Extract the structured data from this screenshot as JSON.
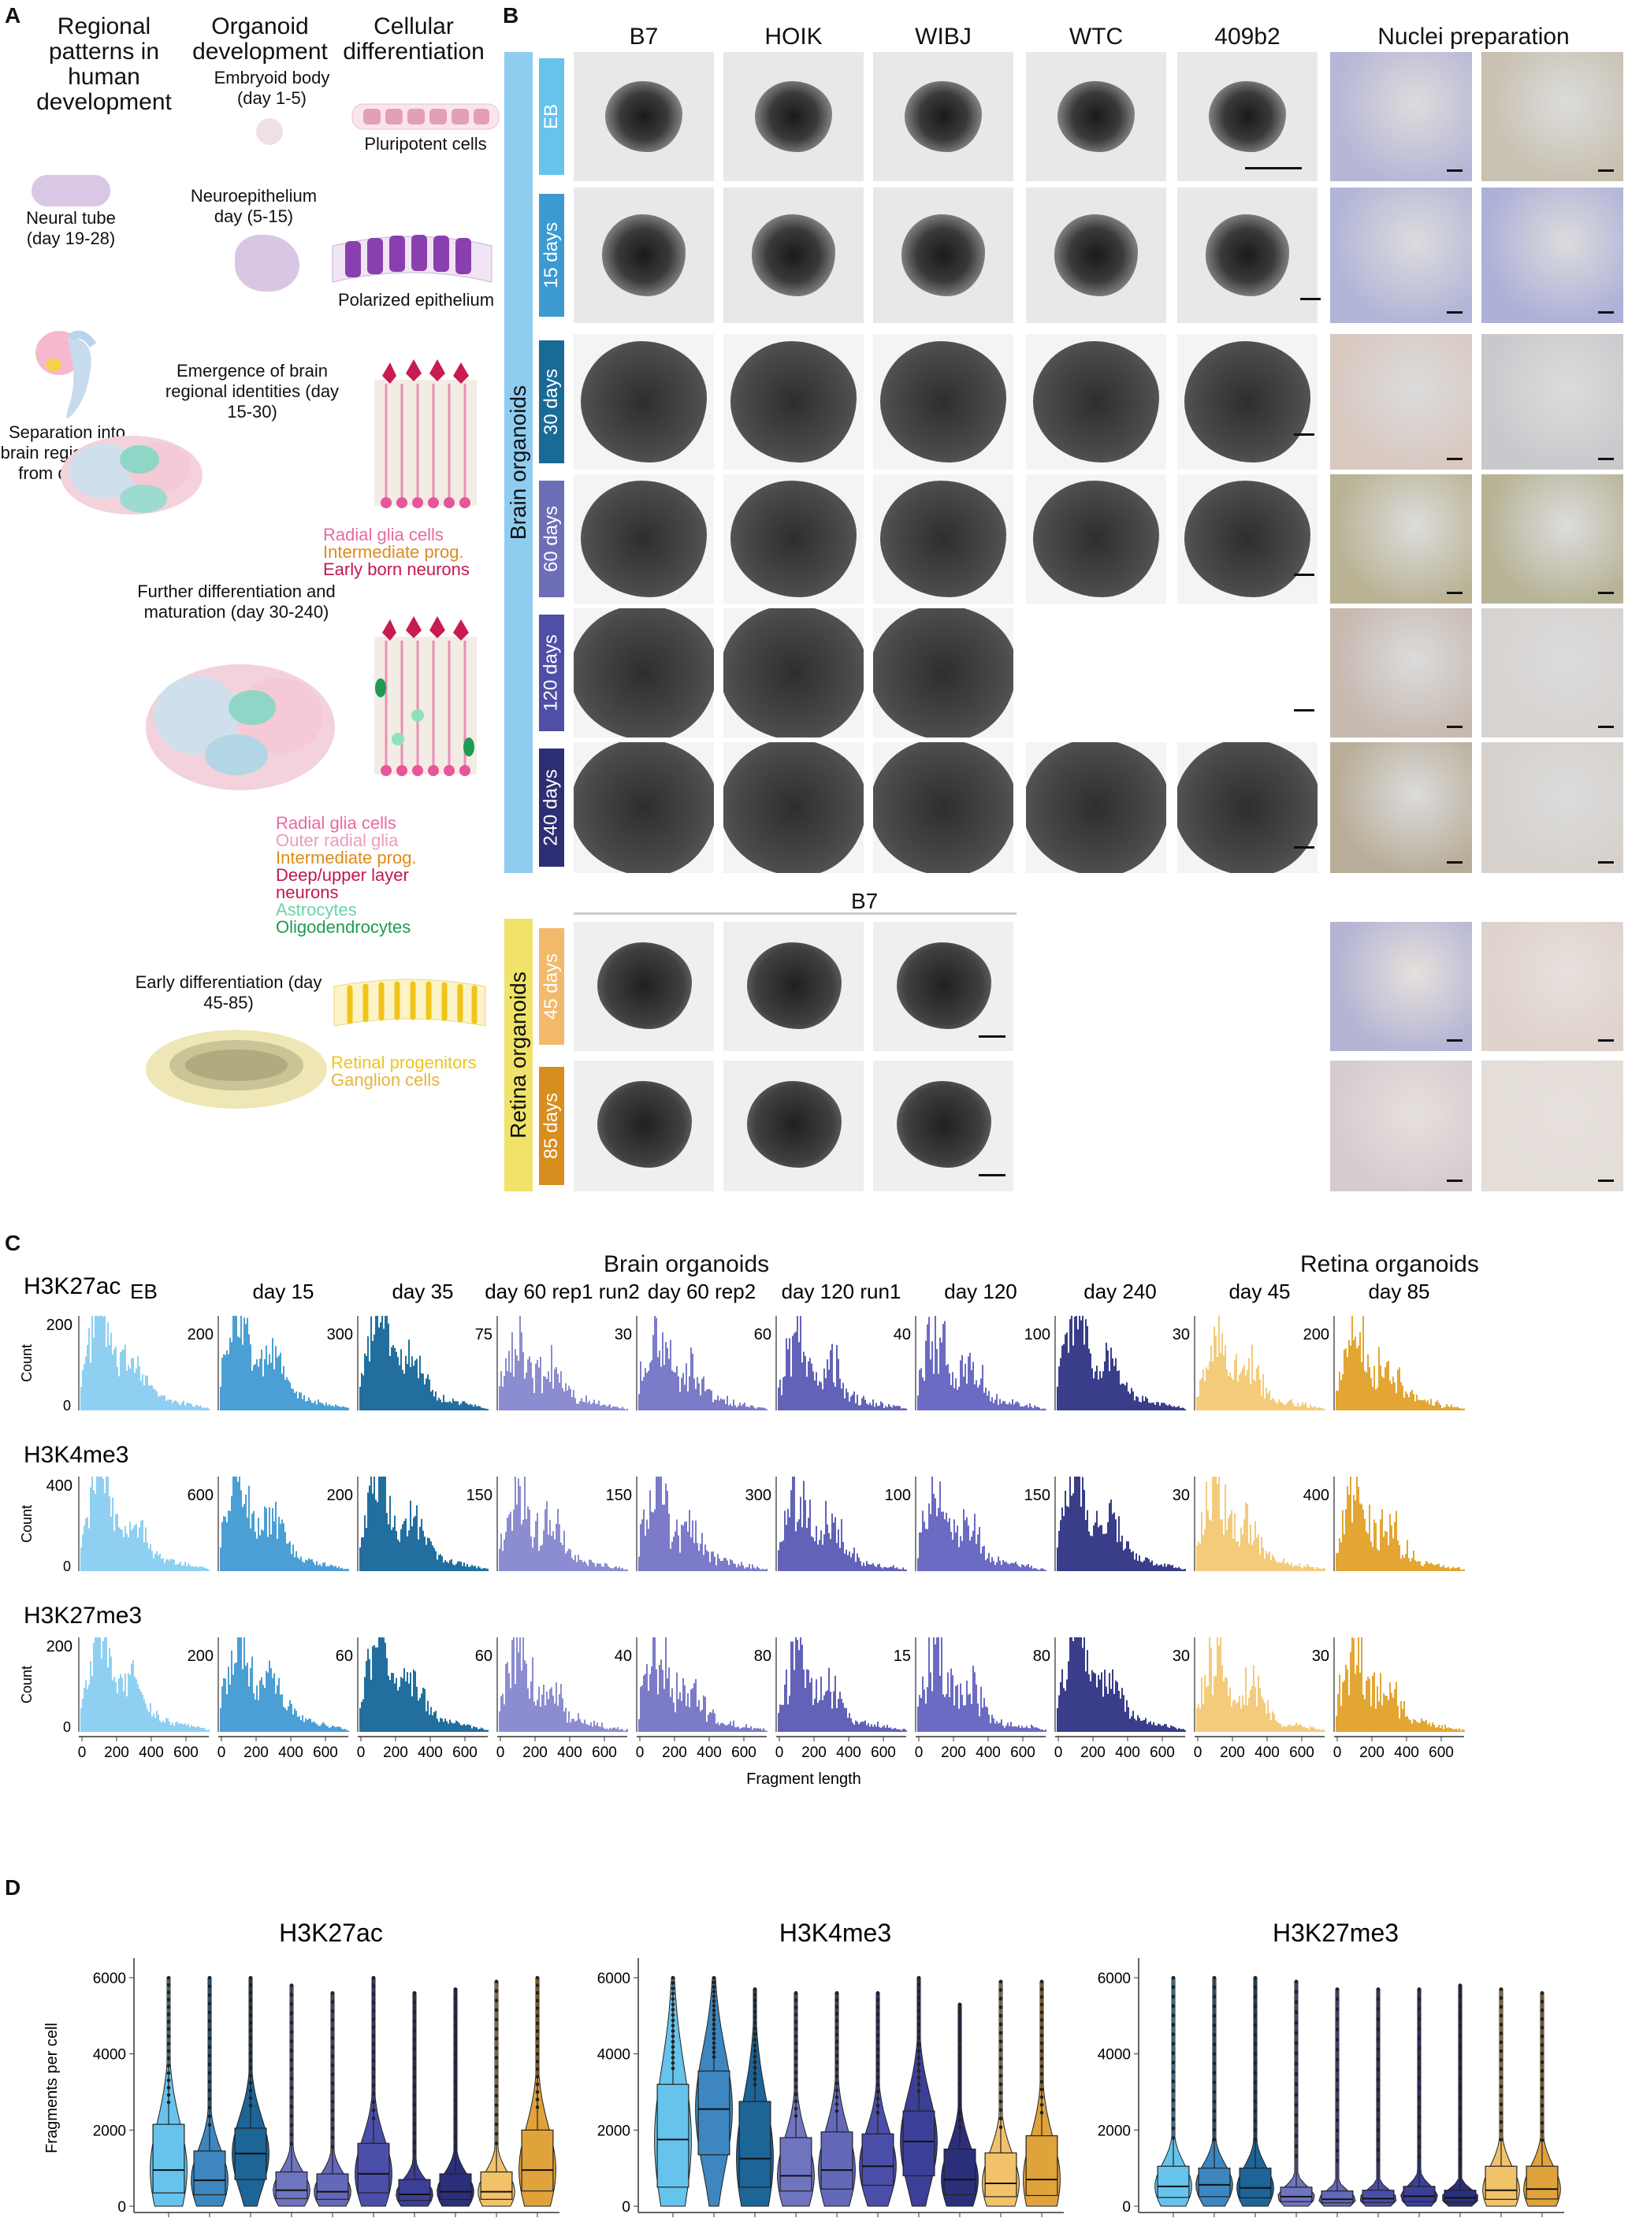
{
  "panelA": {
    "letter": "A",
    "col_headers": [
      "Regional patterns in human development",
      "Organoid development",
      "Cellular differentiation"
    ],
    "left_labels": {
      "neural_tube": "Neural tube (day 19-28)",
      "separation": "Separation into brain regions day from day 25)"
    },
    "stages": {
      "eb": "Embryoid body (day 1-5)",
      "pluripotent": "Pluripotent cells",
      "neuroepi": "Neuroepithelium day (5-15)",
      "polarized": "Polarized epithelium",
      "emergence": "Emergence of brain regional identities (day 15-30)",
      "further": "Further differentiation and maturation (day 30-240)",
      "early": "Early differentiation (day 45-85)"
    },
    "celltypes1": [
      {
        "text": "Radial glia cells",
        "color": "#e86aa0"
      },
      {
        "text": "Intermediate prog.",
        "color": "#e08a1c"
      },
      {
        "text": "Early born neurons",
        "color": "#c3184d"
      }
    ],
    "celltypes2": [
      {
        "text": "Radial glia cells",
        "color": "#e86aa0"
      },
      {
        "text": "Outer radial glia",
        "color": "#f09ac0"
      },
      {
        "text": "Intermediate prog.",
        "color": "#e08a1c"
      },
      {
        "text": "Deep/upper layer",
        "color": "#c3184d"
      },
      {
        "text": "neurons",
        "color": "#c3184d"
      },
      {
        "text": "Astrocytes",
        "color": "#6fd2a5"
      },
      {
        "text": "Oligodendrocytes",
        "color": "#1f9a55"
      }
    ],
    "celltypes3": [
      {
        "text": "Retinal progenitors",
        "color": "#f0c419"
      },
      {
        "text": "Ganglion cells",
        "color": "#e6b43c"
      }
    ]
  },
  "panelB": {
    "letter": "B",
    "lines": [
      "B7",
      "HOIK",
      "WIBJ",
      "WTC",
      "409b2"
    ],
    "nuclei_header": "Nuclei preparation",
    "brain_label": "Brain organoids",
    "retina_label": "Retina organoids",
    "retina_line": "B7",
    "brain_rows": [
      {
        "label": "EB",
        "color": "#66c3ec",
        "present": [
          1,
          1,
          1,
          1,
          1
        ]
      },
      {
        "label": "15 days",
        "color": "#3d9ad1",
        "present": [
          1,
          1,
          1,
          1,
          1
        ]
      },
      {
        "label": "30 days",
        "color": "#1a6a97",
        "present": [
          1,
          1,
          1,
          1,
          1
        ]
      },
      {
        "label": "60 days",
        "color": "#6d6eb8",
        "present": [
          1,
          1,
          1,
          1,
          1
        ]
      },
      {
        "label": "120 days",
        "color": "#4f4fa6",
        "present": [
          1,
          1,
          1,
          0,
          0
        ]
      },
      {
        "label": "240 days",
        "color": "#2c2f73",
        "present": [
          1,
          1,
          1,
          1,
          1
        ]
      }
    ],
    "retina_rows": [
      {
        "label": "45 days",
        "color": "#f2b96b"
      },
      {
        "label": "85 days",
        "color": "#d88e1f"
      }
    ],
    "colors": {
      "brain_bar": "#8fcdf0",
      "retina_bar": "#f1e36a"
    }
  },
  "panelC": {
    "letter": "C",
    "brain_label": "Brain organoids",
    "retina_label": "Retina organoids",
    "samples": [
      "EB",
      "day 15",
      "day 35",
      "day 60 rep1 run2",
      "day 60 rep2",
      "day 120 run1",
      "day 120",
      "day 240",
      "day 45",
      "day 85"
    ],
    "sample_colors": [
      "#8fd0f2",
      "#4a9fd4",
      "#226f9f",
      "#8c8cd0",
      "#7b7bc9",
      "#6262b8",
      "#6b6bc4",
      "#3a3d8a",
      "#f3cb7a",
      "#e3a632"
    ],
    "xlabel": "Fragment length",
    "ylabel": "Count",
    "xticks": [
      "0",
      "200",
      "400",
      "600"
    ],
    "marks": [
      {
        "name": "H3K27ac",
        "ymax_labels": [
          "200",
          "200",
          "300",
          "75",
          "30",
          "60",
          "40",
          "100",
          "30",
          "200"
        ]
      },
      {
        "name": "H3K4me3",
        "ymax_labels": [
          "400",
          "600",
          "200",
          "150",
          "150",
          "300",
          "100",
          "150",
          "30",
          "400"
        ]
      },
      {
        "name": "H3K27me3",
        "ymax_labels": [
          "200",
          "200",
          "60",
          "60",
          "40",
          "80",
          "15",
          "80",
          "30",
          "30"
        ]
      }
    ]
  },
  "chart_data": {
    "type": "violin",
    "ylabel": "Fragments per cell",
    "ylim": [
      0,
      6000
    ],
    "yticks": [
      0,
      2000,
      4000,
      6000
    ],
    "colors": [
      "#66c3ec",
      "#3d86bf",
      "#1d6497",
      "#6f74bf",
      "#6368b8",
      "#4b4ea8",
      "#3b3f97",
      "#2b2f7a",
      "#f2c26a",
      "#e0a23a"
    ],
    "panels": [
      {
        "title": "H3K27ac",
        "medians": [
          950,
          680,
          1380,
          420,
          380,
          850,
          310,
          380,
          380,
          950
        ],
        "q1": [
          350,
          300,
          700,
          200,
          180,
          350,
          150,
          180,
          180,
          400
        ],
        "q3": [
          2150,
          1450,
          2050,
          900,
          850,
          1650,
          700,
          850,
          900,
          2000
        ],
        "max": [
          6000,
          6000,
          6000,
          5800,
          5600,
          6000,
          5600,
          5700,
          5900,
          6000
        ]
      },
      {
        "title": "H3K4me3",
        "medians": [
          1750,
          2550,
          1250,
          800,
          950,
          1050,
          1700,
          700,
          600,
          700
        ],
        "q1": [
          500,
          1350,
          500,
          400,
          450,
          550,
          800,
          300,
          250,
          280
        ],
        "q3": [
          3200,
          3550,
          2750,
          1800,
          1950,
          1900,
          2500,
          1500,
          1400,
          1850
        ],
        "max": [
          6000,
          6000,
          5700,
          5600,
          5600,
          5600,
          6000,
          5300,
          5900,
          5900
        ]
      },
      {
        "title": "H3K27me3",
        "medians": [
          520,
          560,
          480,
          250,
          180,
          200,
          260,
          220,
          420,
          450
        ],
        "q1": [
          230,
          250,
          220,
          120,
          90,
          100,
          120,
          100,
          180,
          190
        ],
        "q3": [
          1050,
          1000,
          1000,
          500,
          400,
          420,
          520,
          420,
          1050,
          1050
        ],
        "max": [
          6000,
          6000,
          6000,
          5900,
          5700,
          5700,
          5700,
          5800,
          5700,
          5600
        ]
      }
    ]
  }
}
